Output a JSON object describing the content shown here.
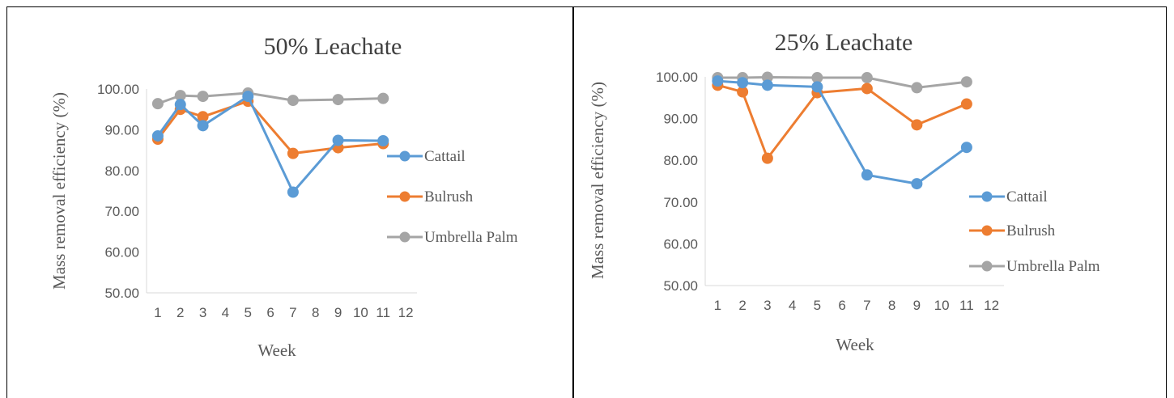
{
  "chart_data": [
    {
      "type": "line",
      "title": "50% Leachate",
      "xlabel": "Week",
      "ylabel": "Mass removal efficiency (%)",
      "ylim": [
        50,
        100
      ],
      "yticks": [
        "50.00",
        "60.00",
        "70.00",
        "80.00",
        "90.00",
        "100.00"
      ],
      "xlim": [
        1,
        12
      ],
      "xticks": [
        "1",
        "2",
        "3",
        "4",
        "5",
        "6",
        "7",
        "8",
        "9",
        "10",
        "11",
        "12"
      ],
      "grid": false,
      "legend": "right",
      "series": [
        {
          "name": "Cattail",
          "color": "#5B9BD5",
          "x": [
            1,
            2,
            3,
            5,
            7,
            9,
            11
          ],
          "values": [
            88.5,
            96.2,
            91.0,
            98.2,
            74.7,
            87.4,
            87.3
          ]
        },
        {
          "name": "Bulrush",
          "color": "#ED7D31",
          "x": [
            1,
            2,
            3,
            5,
            7,
            9,
            11
          ],
          "values": [
            87.7,
            95.0,
            93.2,
            97.0,
            84.2,
            85.6,
            86.6
          ]
        },
        {
          "name": "Umbrella Palm",
          "color": "#A5A5A5",
          "x": [
            1,
            2,
            3,
            5,
            7,
            9,
            11
          ],
          "values": [
            96.4,
            98.4,
            98.2,
            99.0,
            97.2,
            97.4,
            97.7
          ]
        }
      ]
    },
    {
      "type": "line",
      "title": "25% Leachate",
      "xlabel": "Week",
      "ylabel": "Mass removal efficiency (%)",
      "ylim": [
        50,
        100
      ],
      "yticks": [
        "50.00",
        "60.00",
        "70.00",
        "80.00",
        "90.00",
        "100.00"
      ],
      "xlim": [
        1,
        12
      ],
      "xticks": [
        "1",
        "2",
        "3",
        "4",
        "5",
        "6",
        "7",
        "8",
        "9",
        "10",
        "11",
        "12"
      ],
      "grid": false,
      "legend": "right",
      "series": [
        {
          "name": "Cattail",
          "color": "#5B9BD5",
          "x": [
            1,
            2,
            3,
            5,
            7,
            9,
            11
          ],
          "values": [
            99.0,
            98.6,
            98.0,
            97.6,
            76.5,
            74.4,
            83.1
          ]
        },
        {
          "name": "Bulrush",
          "color": "#ED7D31",
          "x": [
            1,
            2,
            3,
            5,
            7,
            9,
            11
          ],
          "values": [
            98.0,
            96.4,
            80.5,
            96.2,
            97.2,
            88.5,
            93.5
          ]
        },
        {
          "name": "Umbrella Palm",
          "color": "#A5A5A5",
          "x": [
            1,
            2,
            3,
            5,
            7,
            9,
            11
          ],
          "values": [
            99.8,
            99.8,
            99.9,
            99.8,
            99.8,
            97.4,
            98.8
          ]
        }
      ]
    }
  ]
}
